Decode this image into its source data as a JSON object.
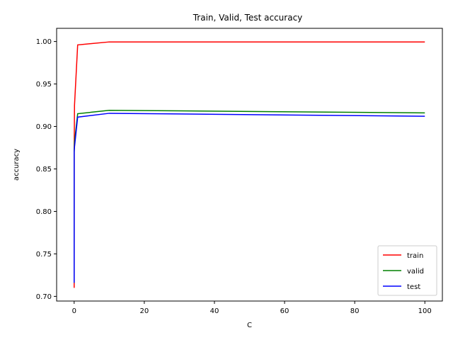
{
  "chart_data": {
    "type": "line",
    "title": "Train, Valid, Test accuracy",
    "xlabel": "C",
    "ylabel": "accuracy",
    "x": [
      0.001,
      0.01,
      0.1,
      1,
      10,
      100
    ],
    "series": [
      {
        "name": "train",
        "color": "#ff0000",
        "values": [
          0.71,
          0.872,
          0.925,
          0.996,
          0.9995,
          0.9995
        ]
      },
      {
        "name": "valid",
        "color": "#008000",
        "values": [
          0.716,
          0.872,
          0.882,
          0.915,
          0.919,
          0.916
        ]
      },
      {
        "name": "test",
        "color": "#0000ff",
        "values": [
          0.716,
          0.87,
          0.876,
          0.911,
          0.9155,
          0.912
        ]
      }
    ],
    "xlim": [
      -5,
      105
    ],
    "ylim": [
      0.6945,
      1.0155
    ],
    "xticks": [
      "0",
      "20",
      "40",
      "60",
      "80",
      "100"
    ],
    "yticks": [
      "0.70",
      "0.75",
      "0.80",
      "0.85",
      "0.90",
      "0.95",
      "1.00"
    ],
    "grid": false,
    "legend_position": "lower-right"
  }
}
